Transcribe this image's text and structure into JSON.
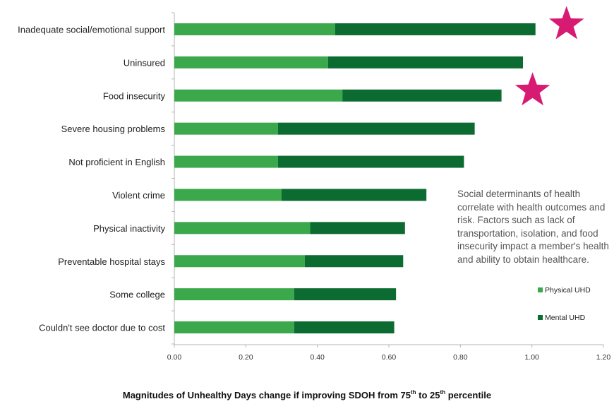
{
  "chart_data": {
    "type": "bar",
    "orientation": "horizontal",
    "stacked": true,
    "categories": [
      "Inadequate social/emotional support",
      "Uninsured",
      "Food insecurity",
      "Severe housing problems",
      "Not proficient in English",
      "Violent crime",
      "Physical inactivity",
      "Preventable hospital stays",
      "Some college",
      "Couldn't see doctor due to cost"
    ],
    "series": [
      {
        "name": "Physical UHD",
        "color": "#3aa84b",
        "values": [
          0.45,
          0.43,
          0.47,
          0.29,
          0.29,
          0.3,
          0.38,
          0.365,
          0.335,
          0.335
        ]
      },
      {
        "name": "Mental UHD",
        "color": "#0c6b31",
        "values": [
          0.56,
          0.545,
          0.445,
          0.55,
          0.52,
          0.405,
          0.265,
          0.275,
          0.285,
          0.28
        ]
      }
    ],
    "xlim": [
      0,
      1.2
    ],
    "xticks": [
      "0.00",
      "0.20",
      "0.40",
      "0.60",
      "0.80",
      "1.00",
      "1.20"
    ],
    "grid": false,
    "legend_placement": "right",
    "highlight": {
      "icon": "star-icon",
      "color": "#d81b72",
      "categories": [
        "Inadequate social/emotional support",
        "Food insecurity"
      ]
    }
  },
  "annotation": "Social determinants of health correlate with health outcomes and risk.  Factors such as lack of transportation, isolation, and food insecurity impact a member's health and ability to obtain healthcare.",
  "caption": {
    "part1": "Magnitudes of Unhealthy Days change if improving SDOH from 75",
    "sup1": "th",
    "part2": "  to 25",
    "sup2": "th",
    "part3": " percentile"
  }
}
